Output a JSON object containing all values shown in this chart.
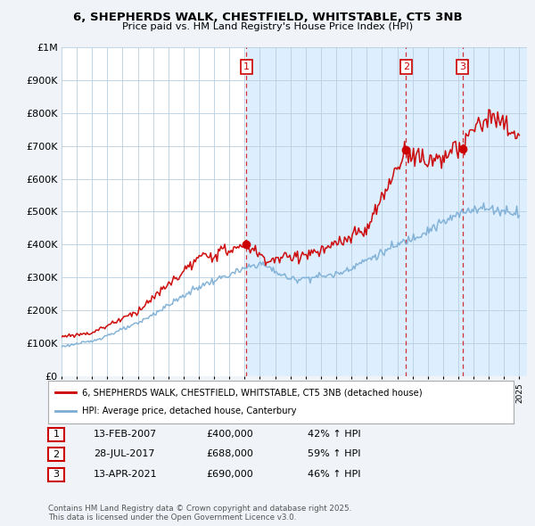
{
  "title": "6, SHEPHERDS WALK, CHESTFIELD, WHITSTABLE, CT5 3NB",
  "subtitle": "Price paid vs. HM Land Registry's House Price Index (HPI)",
  "yticks": [
    0,
    100000,
    200000,
    300000,
    400000,
    500000,
    600000,
    700000,
    800000,
    900000,
    1000000
  ],
  "ytick_labels": [
    "£0",
    "£100K",
    "£200K",
    "£300K",
    "£400K",
    "£500K",
    "£600K",
    "£700K",
    "£800K",
    "£900K",
    "£1M"
  ],
  "sale1_date": 2007.11,
  "sale1_price": 400000,
  "sale1_label": "1",
  "sale2_date": 2017.57,
  "sale2_price": 688000,
  "sale2_label": "2",
  "sale3_date": 2021.28,
  "sale3_price": 690000,
  "sale3_label": "3",
  "red_color": "#cc0000",
  "blue_color": "#7aadd4",
  "dashed_color": "#cc0000",
  "plot_bg_left": "#ffffff",
  "plot_bg_right": "#ddeeff",
  "legend1": "6, SHEPHERDS WALK, CHESTFIELD, WHITSTABLE, CT5 3NB (detached house)",
  "legend2": "HPI: Average price, detached house, Canterbury",
  "table_rows": [
    [
      "1",
      "13-FEB-2007",
      "£400,000",
      "42% ↑ HPI"
    ],
    [
      "2",
      "28-JUL-2017",
      "£688,000",
      "59% ↑ HPI"
    ],
    [
      "3",
      "13-APR-2021",
      "£690,000",
      "46% ↑ HPI"
    ]
  ],
  "footer": "Contains HM Land Registry data © Crown copyright and database right 2025.\nThis data is licensed under the Open Government Licence v3.0.",
  "bg_color": "#f0f4f8"
}
